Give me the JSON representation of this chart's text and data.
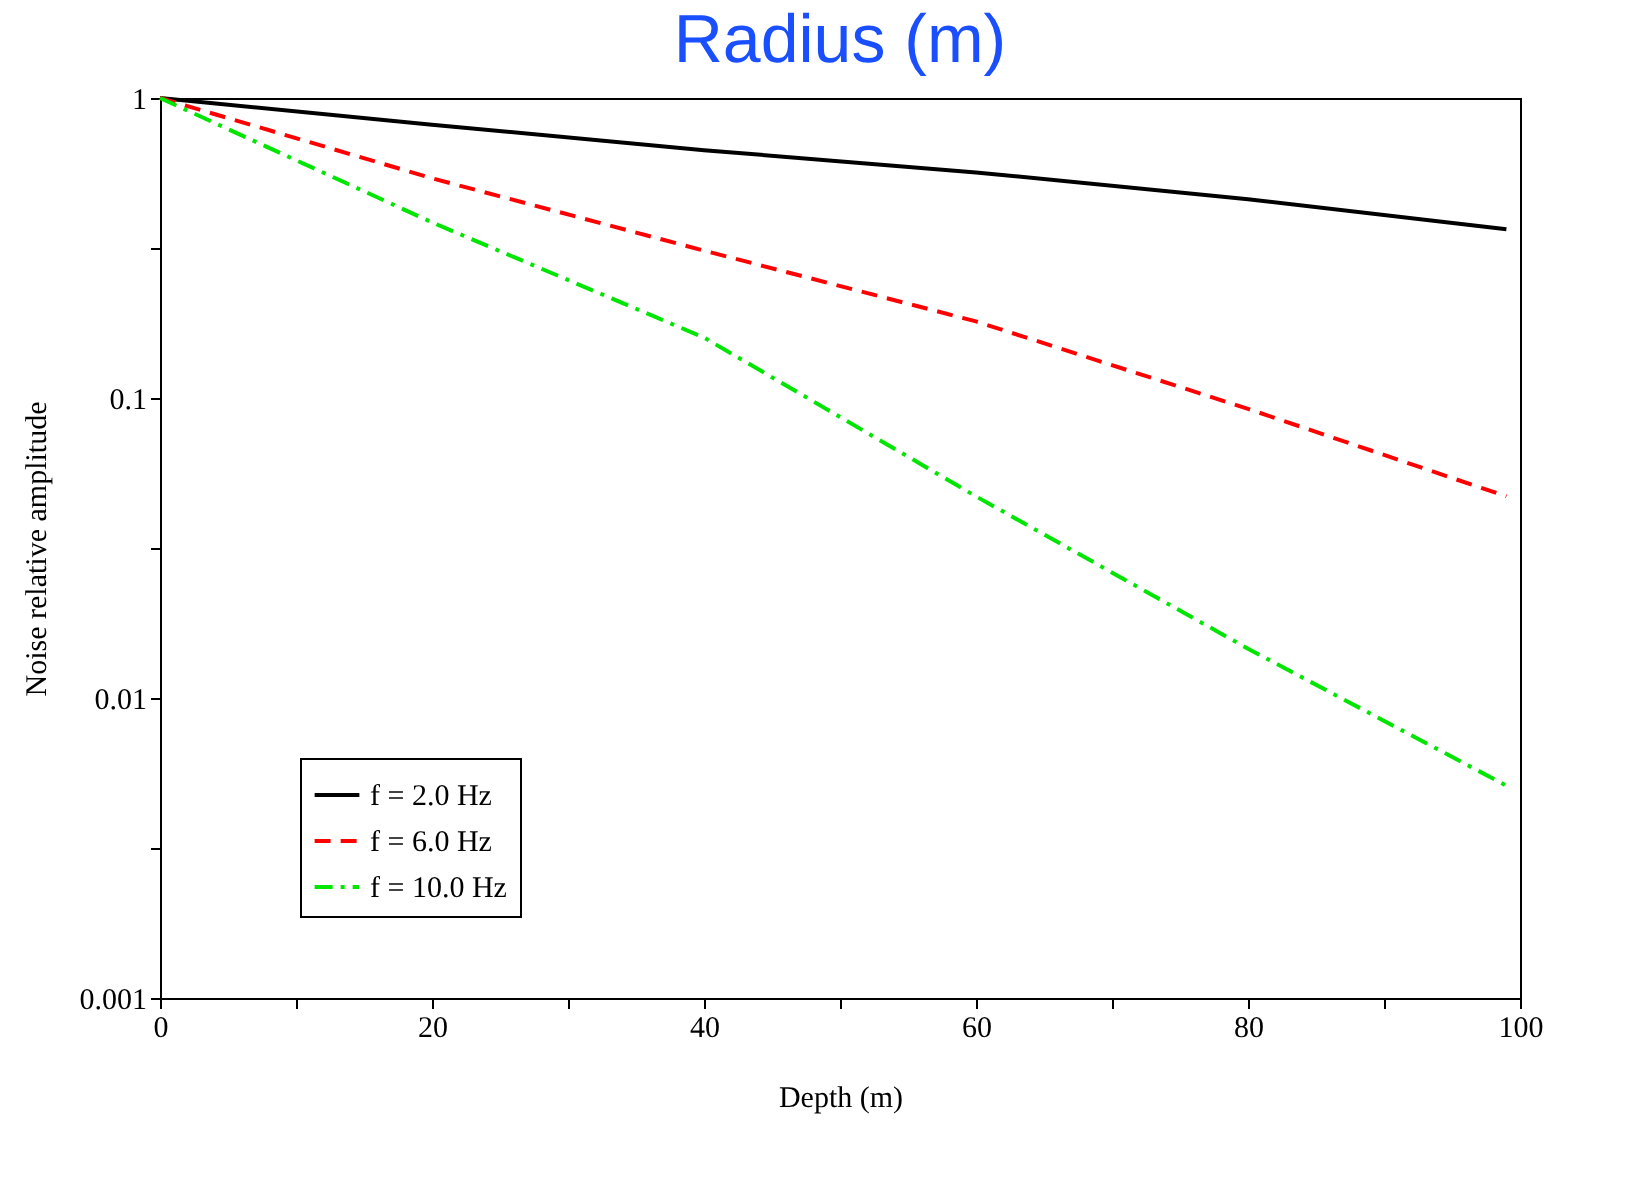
{
  "chart_data": {
    "type": "line",
    "title": "Radius (m)",
    "xlabel": "Depth (m)",
    "ylabel": "Noise relative amplitude",
    "x": [
      0,
      20,
      40,
      60,
      80,
      99
    ],
    "series": [
      {
        "name": "f = 2.0 Hz",
        "color": "#000000",
        "line_style": "solid",
        "values": [
          1,
          0.815,
          0.67,
          0.565,
          0.46,
          0.365
        ]
      },
      {
        "name": "f = 6.0 Hz",
        "color": "#ff0000",
        "line_style": "dashed",
        "values": [
          1,
          0.54,
          0.31,
          0.18,
          0.092,
          0.047
        ]
      },
      {
        "name": "f = 10.0 Hz",
        "color": "#00e600",
        "line_style": "dashdot",
        "values": [
          1,
          0.385,
          0.159,
          0.047,
          0.0146,
          0.0051
        ]
      }
    ],
    "log": "y",
    "xlim": [
      0,
      100
    ],
    "ylim": [
      0.001,
      1
    ],
    "xticks": [
      0,
      {
        "value": 10,
        "label": null
      },
      20,
      {
        "value": 30,
        "label": null
      },
      40,
      {
        "value": 50,
        "label": null
      },
      60,
      {
        "value": 70,
        "label": null
      },
      80,
      {
        "value": 90,
        "label": null
      },
      100
    ],
    "yticks": [
      0.001,
      {
        "value": 0.00316,
        "label": null
      },
      0.01,
      {
        "value": 0.0316,
        "label": null
      },
      0.1,
      {
        "value": 0.316,
        "label": null
      },
      1
    ],
    "legend": "bottom left",
    "grid": false,
    "marker": "none"
  }
}
